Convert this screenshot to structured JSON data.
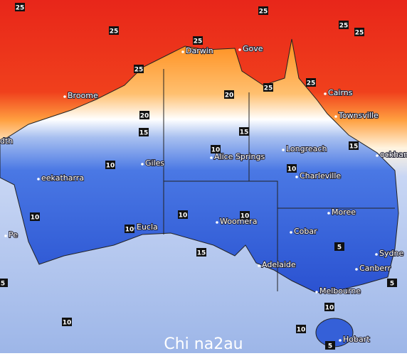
{
  "cities": [
    "Darwin",
    "Gove",
    "Broome",
    "Cairns",
    "Townsville",
    "dth",
    "Longreach",
    "Alice Springs",
    "ockham",
    "Giles",
    "eekatharra",
    "Charleville",
    "Moree",
    "Cobar",
    "Woomera",
    "Eucla",
    "Pe",
    "Sydne",
    "Adelaide",
    "Canberr",
    "Melbourne",
    "Hobart"
  ],
  "contour_labels": [
    25,
    25,
    25,
    25,
    25,
    25,
    25,
    25,
    25,
    20,
    20,
    15,
    15,
    15,
    15,
    10,
    10,
    10,
    10,
    10,
    10,
    10,
    10,
    10,
    10,
    5,
    5,
    5,
    5
  ],
  "watermark": "Chi na2au"
}
